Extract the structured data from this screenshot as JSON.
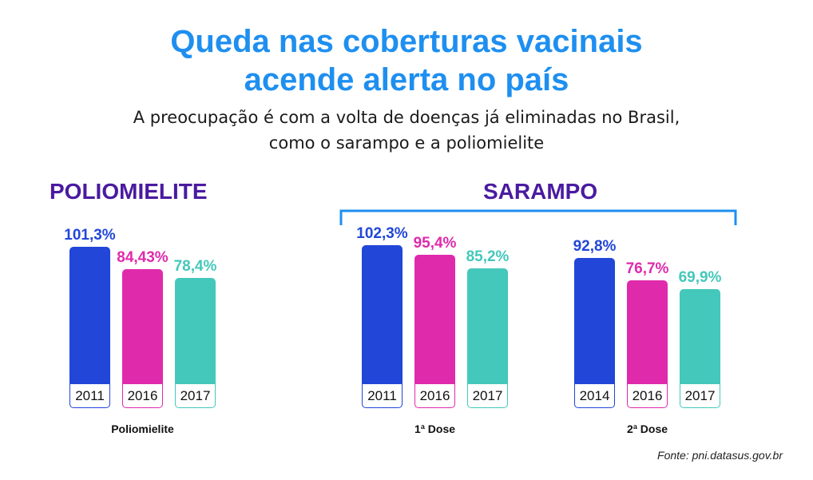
{
  "title_line1": "Queda nas coberturas vacinais",
  "title_line2": "acende alerta no país",
  "subtitle_line1": "A preocupação é com a volta de doenças já eliminadas no Brasil,",
  "subtitle_line2": "como o sarampo e a poliomielite",
  "heading_polio": "POLIOMIELITE",
  "heading_sarampo": "SARAMPO",
  "source": "Fonte: pni.datasus.gov.br",
  "colors": {
    "title": "#1e8ff0",
    "heading": "#4a1aa0",
    "bracket": "#1e8ff0"
  },
  "chart_data": [
    {
      "type": "bar",
      "group_label": "Poliomielite",
      "categories": [
        "2011",
        "2016",
        "2017"
      ],
      "values": [
        101.3,
        84.43,
        78.4
      ],
      "value_labels": [
        "101,3%",
        "84,43%",
        "78,4%"
      ],
      "colors": [
        "#2146d8",
        "#e02aac",
        "#44c8bb"
      ],
      "ylim": [
        0,
        105
      ]
    },
    {
      "type": "bar",
      "group_label": "1ª Dose",
      "categories": [
        "2011",
        "2016",
        "2017"
      ],
      "values": [
        102.3,
        95.4,
        85.2
      ],
      "value_labels": [
        "102,3%",
        "95,4%",
        "85,2%"
      ],
      "colors": [
        "#2146d8",
        "#e02aac",
        "#44c8bb"
      ],
      "ylim": [
        0,
        105
      ]
    },
    {
      "type": "bar",
      "group_label": "2ª Dose",
      "categories": [
        "2014",
        "2016",
        "2017"
      ],
      "values": [
        92.8,
        76.7,
        69.9
      ],
      "value_labels": [
        "92,8%",
        "76,7%",
        "69,9%"
      ],
      "colors": [
        "#2146d8",
        "#e02aac",
        "#44c8bb"
      ],
      "ylim": [
        0,
        105
      ]
    }
  ]
}
